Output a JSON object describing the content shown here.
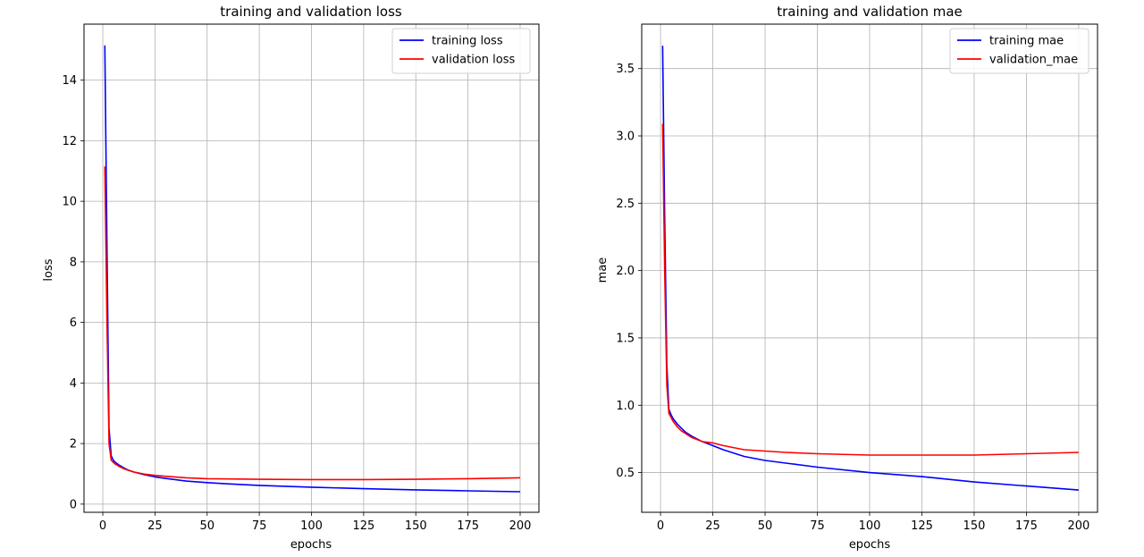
{
  "chart_data": [
    {
      "type": "line",
      "title": "training and validation loss",
      "xlabel": "epochs",
      "ylabel": "loss",
      "xlim": [
        -9,
        209
      ],
      "ylim": [
        -0.27,
        15.85
      ],
      "xticks": [
        0,
        25,
        50,
        75,
        100,
        125,
        150,
        175,
        200
      ],
      "yticks": [
        0,
        2,
        4,
        6,
        8,
        10,
        12,
        14
      ],
      "grid": true,
      "legend_placement": "top-right",
      "series": [
        {
          "name": "training loss",
          "color": "#0000ff",
          "x": [
            1,
            2,
            3,
            4,
            5,
            6,
            8,
            10,
            12,
            15,
            20,
            25,
            30,
            40,
            50,
            60,
            75,
            100,
            125,
            150,
            175,
            200
          ],
          "y": [
            15.15,
            8.5,
            2.5,
            1.6,
            1.45,
            1.38,
            1.28,
            1.2,
            1.13,
            1.06,
            0.97,
            0.9,
            0.85,
            0.76,
            0.71,
            0.67,
            0.62,
            0.56,
            0.51,
            0.47,
            0.44,
            0.41
          ]
        },
        {
          "name": "validation loss",
          "color": "#ff0000",
          "x": [
            1,
            2,
            3,
            4,
            5,
            6,
            8,
            10,
            12,
            15,
            20,
            25,
            30,
            40,
            50,
            60,
            75,
            100,
            125,
            150,
            175,
            200
          ],
          "y": [
            11.15,
            6.0,
            2.0,
            1.45,
            1.38,
            1.32,
            1.24,
            1.17,
            1.12,
            1.06,
            0.99,
            0.95,
            0.92,
            0.87,
            0.84,
            0.83,
            0.82,
            0.81,
            0.81,
            0.82,
            0.84,
            0.87
          ]
        }
      ]
    },
    {
      "type": "line",
      "title": "training and validation mae",
      "xlabel": "epochs",
      "ylabel": "mae",
      "xlim": [
        -9,
        209
      ],
      "ylim": [
        0.205,
        3.83
      ],
      "xticks": [
        0,
        25,
        50,
        75,
        100,
        125,
        150,
        175,
        200
      ],
      "yticks": [
        0.5,
        1.0,
        1.5,
        2.0,
        2.5,
        3.0,
        3.5
      ],
      "grid": true,
      "legend_placement": "top-right",
      "series": [
        {
          "name": "training mae",
          "color": "#0000ff",
          "x": [
            1,
            2,
            3,
            4,
            5,
            6,
            8,
            10,
            12,
            15,
            20,
            25,
            30,
            40,
            50,
            60,
            75,
            100,
            125,
            150,
            175,
            200
          ],
          "y": [
            3.67,
            2.4,
            1.3,
            0.97,
            0.93,
            0.9,
            0.86,
            0.83,
            0.8,
            0.77,
            0.73,
            0.7,
            0.67,
            0.62,
            0.59,
            0.57,
            0.54,
            0.5,
            0.47,
            0.43,
            0.4,
            0.37
          ]
        },
        {
          "name": "validation_mae",
          "color": "#ff0000",
          "x": [
            1,
            2,
            3,
            4,
            5,
            6,
            8,
            10,
            12,
            15,
            20,
            25,
            30,
            40,
            50,
            60,
            75,
            100,
            125,
            150,
            175,
            200
          ],
          "y": [
            3.09,
            2.0,
            1.15,
            0.94,
            0.91,
            0.88,
            0.84,
            0.81,
            0.79,
            0.76,
            0.73,
            0.72,
            0.7,
            0.67,
            0.66,
            0.65,
            0.64,
            0.63,
            0.63,
            0.63,
            0.64,
            0.65
          ]
        }
      ]
    }
  ]
}
